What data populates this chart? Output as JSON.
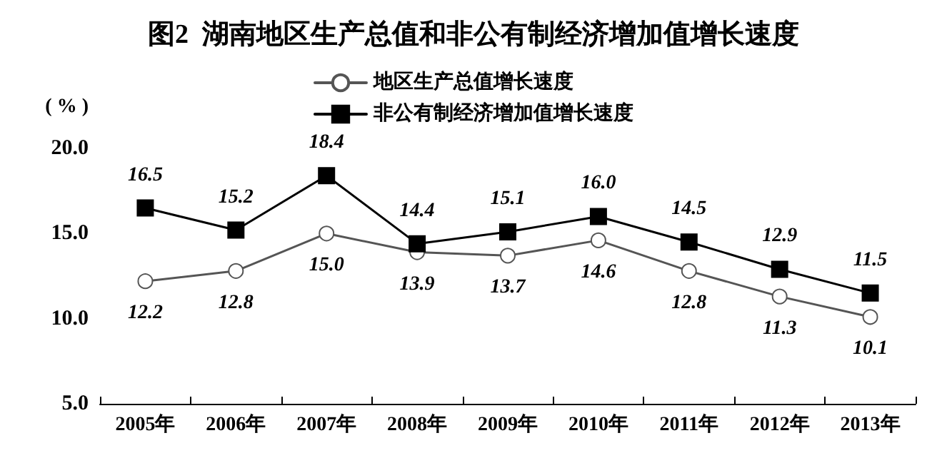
{
  "chart_data": {
    "type": "line",
    "title": "图2  湖南地区生产总值和非公有制经济增加值增长速度",
    "ylabel": "( % )",
    "categories": [
      "2005年",
      "2006年",
      "2007年",
      "2008年",
      "2009年",
      "2010年",
      "2011年",
      "2012年",
      "2013年"
    ],
    "series": [
      {
        "name": "地区生产总值增长速度",
        "color": "#555555",
        "marker": "circle",
        "values": [
          12.2,
          12.8,
          15.0,
          13.9,
          13.7,
          14.6,
          12.8,
          11.3,
          10.1
        ],
        "value_labels": [
          "12.2",
          "12.8",
          "15.0",
          "13.9",
          "13.7",
          "14.6",
          "12.8",
          "11.3",
          "10.1"
        ]
      },
      {
        "name": "非公有制经济增加值增长速度",
        "color": "#000000",
        "marker": "square",
        "values": [
          16.5,
          15.2,
          18.4,
          14.4,
          15.1,
          16.0,
          14.5,
          12.9,
          11.5
        ],
        "value_labels": [
          "16.5",
          "15.2",
          "18.4",
          "14.4",
          "15.1",
          "16.0",
          "14.5",
          "12.9",
          "11.5"
        ]
      }
    ],
    "ylim": [
      5,
      20
    ],
    "yticks": [
      {
        "value": 5,
        "label": "5.0"
      },
      {
        "value": 10,
        "label": "10.0"
      },
      {
        "value": 15,
        "label": "15.0"
      },
      {
        "value": 20,
        "label": "20.0"
      }
    ],
    "grid": false,
    "legend": "top",
    "line_style": "solid"
  }
}
